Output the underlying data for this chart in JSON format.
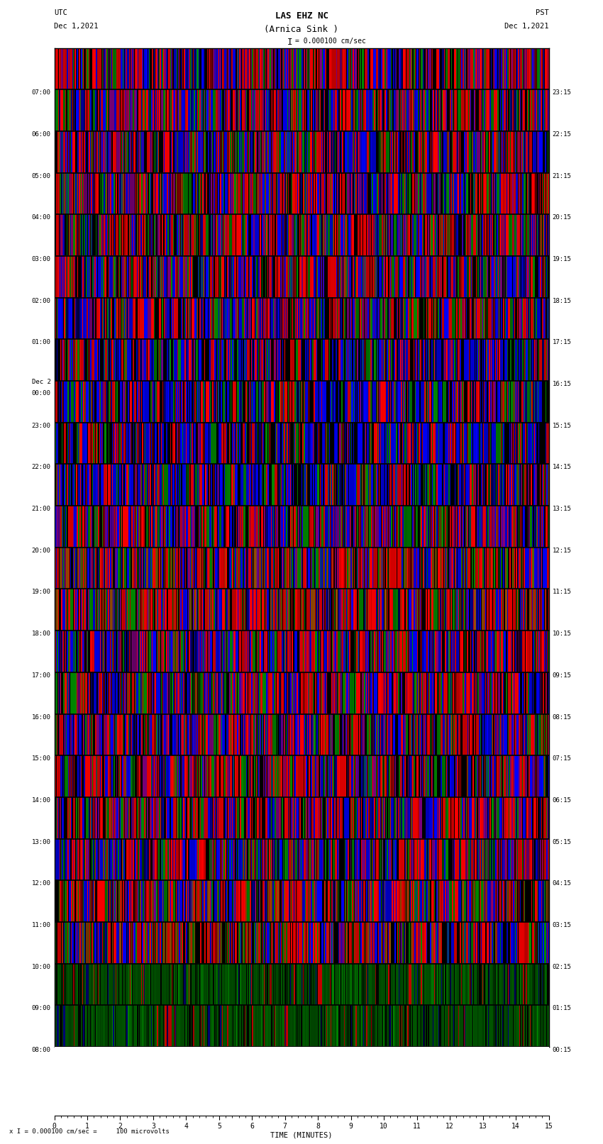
{
  "title_line1": "LAS EHZ NC",
  "title_line2": "(Arnica Sink )",
  "scale_label": "I = 0.000100 cm/sec",
  "utc_label": "UTC",
  "utc_date": "Dec 1,2021",
  "pst_label": "PST",
  "pst_date": "Dec 1,2021",
  "bottom_label": "TIME (MINUTES)",
  "bottom_note": "x I = 0.000100 cm/sec =     100 microvolts",
  "left_times": [
    "08:00",
    "09:00",
    "10:00",
    "11:00",
    "12:00",
    "13:00",
    "14:00",
    "15:00",
    "16:00",
    "17:00",
    "18:00",
    "19:00",
    "20:00",
    "21:00",
    "22:00",
    "23:00",
    "Dec 2\n00:00",
    "01:00",
    "02:00",
    "03:00",
    "04:00",
    "05:00",
    "06:00",
    "07:00"
  ],
  "right_times": [
    "00:15",
    "01:15",
    "02:15",
    "03:15",
    "04:15",
    "05:15",
    "06:15",
    "07:15",
    "08:15",
    "09:15",
    "10:15",
    "11:15",
    "12:15",
    "13:15",
    "14:15",
    "15:15",
    "16:15",
    "17:15",
    "18:15",
    "19:15",
    "20:15",
    "21:15",
    "22:15",
    "23:15"
  ],
  "n_rows": 24,
  "fig_bg": "#ffffff",
  "plot_bg": "#000000"
}
